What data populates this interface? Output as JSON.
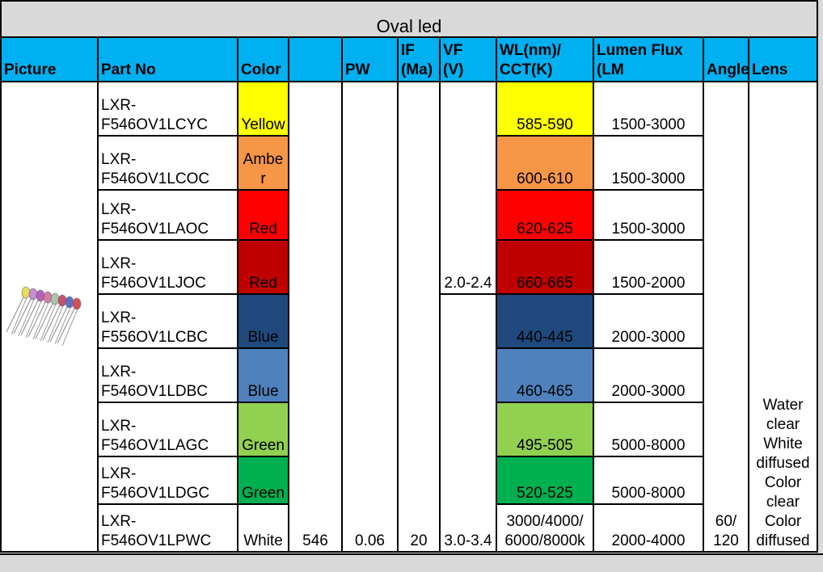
{
  "title": "Oval led",
  "header": {
    "picture": "Picture",
    "part_no": "Part No",
    "color": "Color",
    "pw": "PW",
    "if": [
      "IF",
      "(Ma)"
    ],
    "vf": [
      "VF",
      "(V)"
    ],
    "wl": [
      "WL(nm)/",
      "CCT(K)"
    ],
    "lumen": [
      "Lumen Flux",
      "(LM"
    ],
    "angle": "Angle",
    "lens": "Lens"
  },
  "rows": [
    {
      "part_no": "LXR-F546OV1LCYC",
      "color": "Yellow",
      "fill": "#ffff00",
      "wl": "585-590",
      "lumen": "1500-3000"
    },
    {
      "part_no": "LXR-F546OV1LCOC",
      "color": "Amber",
      "fill": "#f79646",
      "wl": "600-610",
      "lumen": "1500-3000"
    },
    {
      "part_no": "LXR-F546OV1LAOC",
      "color": "Red",
      "fill": "#ff0000",
      "wl": "620-625",
      "lumen": "1500-3000"
    },
    {
      "part_no": "LXR-F546OV1LJOC",
      "color": "Red",
      "fill": "#c00000",
      "wl": "660-665",
      "lumen": "1500-2000"
    },
    {
      "part_no": "LXR-F556OV1LCBC",
      "color": "Blue",
      "fill": "#1f497d",
      "wl": "440-445",
      "lumen": "2000-3000"
    },
    {
      "part_no": "LXR-F546OV1LDBC",
      "color": "Blue",
      "fill": "#4f81bd",
      "wl": "460-465",
      "lumen": "2000-3000"
    },
    {
      "part_no": "LXR-F546OV1LAGC",
      "color": "Green",
      "fill": "#92d050",
      "wl": "495-505",
      "lumen": "5000-8000"
    },
    {
      "part_no": "LXR-F546OV1LDGC",
      "color": "Green",
      "fill": "#00b050",
      "wl": "520-525",
      "lumen": "5000-8000"
    },
    {
      "part_no": "LXR-F546OV1LPWC",
      "color": "White",
      "fill": "#ffffff",
      "wl": "3000/4000/6000/8000k",
      "lumen": "2000-4000"
    }
  ],
  "merged": {
    "size": 546,
    "pw": 0.06,
    "if": 20,
    "vf": [
      "2.0-2.4",
      "3.0-3.4"
    ],
    "angle": "60/120",
    "lens": "Water clear White diffused Color clear Color diffused"
  }
}
